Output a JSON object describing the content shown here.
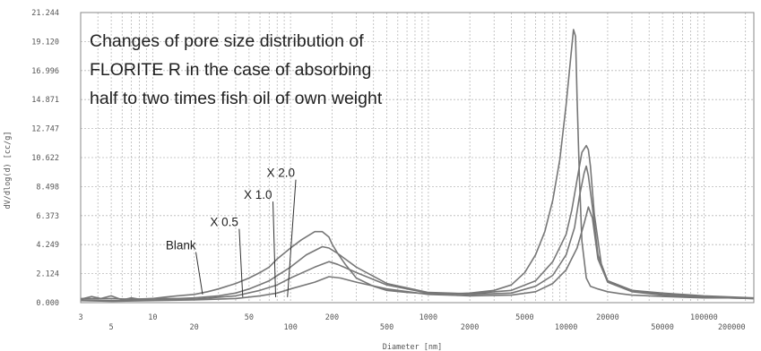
{
  "chart_data": {
    "type": "line",
    "title": "",
    "annotation_lines": [
      "Changes of pore size distribution of",
      "FLORITE R in the case of absorbing",
      "half to two times fish oil of own weight"
    ],
    "xlabel": "Diameter [nm]",
    "ylabel": "dV/dlog(d) [cc/g]",
    "x_scale": "log",
    "xlim": [
      3,
      230000
    ],
    "ylim": [
      0,
      21.244
    ],
    "y_ticks": [
      "0.000",
      "2.124",
      "4.249",
      "6.373",
      "8.498",
      "10.622",
      "12.747",
      "14.871",
      "16.996",
      "19.120",
      "21.244"
    ],
    "x_ticks": [
      {
        "value": 3,
        "label": "3"
      },
      {
        "value": 5,
        "label": "5"
      },
      {
        "value": 10,
        "label": "10"
      },
      {
        "value": 20,
        "label": "20"
      },
      {
        "value": 50,
        "label": "50"
      },
      {
        "value": 100,
        "label": "100"
      },
      {
        "value": 200,
        "label": "200"
      },
      {
        "value": 500,
        "label": "500"
      },
      {
        "value": 1000,
        "label": "1000"
      },
      {
        "value": 2000,
        "label": "2000"
      },
      {
        "value": 5000,
        "label": "5000"
      },
      {
        "value": 10000,
        "label": "10000"
      },
      {
        "value": 20000,
        "label": "20000"
      },
      {
        "value": 50000,
        "label": "50000"
      },
      {
        "value": 100000,
        "label": "100000"
      },
      {
        "value": 200000,
        "label": "200000"
      }
    ],
    "grid": true,
    "line_color": "#777777",
    "series": [
      {
        "name": "Blank",
        "label_at": [
          16,
          3.9
        ],
        "pointer_to": [
          23,
          0.6
        ],
        "x": [
          3,
          3.6,
          4.2,
          5,
          6,
          7,
          8,
          10,
          12,
          15,
          20,
          25,
          30,
          40,
          50,
          60,
          70,
          80,
          100,
          120,
          150,
          170,
          190,
          200,
          220,
          250,
          300,
          400,
          500,
          700,
          1000,
          1500,
          2000,
          3000,
          4000,
          5000,
          6000,
          7000,
          8000,
          9000,
          10000,
          10800,
          11300,
          11700,
          12000,
          12500,
          13000,
          14000,
          15000,
          17000,
          20000,
          25000,
          30000,
          50000,
          100000,
          150000,
          230000
        ],
        "y": [
          0.25,
          0.45,
          0.3,
          0.5,
          0.2,
          0.35,
          0.25,
          0.3,
          0.4,
          0.5,
          0.6,
          0.8,
          1.0,
          1.4,
          1.8,
          2.2,
          2.6,
          3.2,
          4.0,
          4.6,
          5.2,
          5.2,
          4.8,
          4.3,
          3.6,
          2.8,
          1.8,
          1.2,
          0.9,
          0.75,
          0.65,
          0.65,
          0.7,
          0.9,
          1.3,
          2.2,
          3.5,
          5.2,
          7.5,
          10.5,
          14.5,
          18.0,
          20.0,
          19.5,
          15.0,
          9.0,
          4.5,
          1.8,
          1.2,
          1.0,
          0.8,
          0.65,
          0.55,
          0.45,
          0.35,
          0.35,
          0.3
        ]
      },
      {
        "name": "X 0.5",
        "label_at": [
          33,
          5.6
        ],
        "pointer_to": [
          45,
          0.4
        ],
        "x": [
          3,
          4,
          5,
          7,
          10,
          15,
          20,
          30,
          40,
          50,
          70,
          100,
          130,
          170,
          190,
          220,
          300,
          500,
          1000,
          2000,
          4000,
          6000,
          8000,
          10000,
          11000,
          12000,
          13000,
          14000,
          14500,
          15000,
          16000,
          18000,
          20000,
          30000,
          50000,
          100000,
          230000
        ],
        "y": [
          0.3,
          0.3,
          0.3,
          0.25,
          0.3,
          0.3,
          0.35,
          0.5,
          0.7,
          1.0,
          1.6,
          2.6,
          3.5,
          4.1,
          4.0,
          3.6,
          2.6,
          1.4,
          0.75,
          0.65,
          0.9,
          1.6,
          3.0,
          5.0,
          6.8,
          9.0,
          11.0,
          11.5,
          11.2,
          10.0,
          6.5,
          2.8,
          1.6,
          0.9,
          0.7,
          0.5,
          0.35
        ]
      },
      {
        "name": "X 1.0",
        "label_at": [
          58,
          7.6
        ],
        "pointer_to": [
          78,
          0.4
        ],
        "x": [
          3,
          5,
          10,
          20,
          40,
          60,
          80,
          100,
          150,
          190,
          220,
          300,
          500,
          1000,
          2000,
          4000,
          6000,
          8000,
          10000,
          11500,
          12500,
          13500,
          14000,
          14500,
          15500,
          17000,
          20000,
          30000,
          50000,
          100000,
          230000
        ],
        "y": [
          0.2,
          0.15,
          0.2,
          0.25,
          0.5,
          0.9,
          1.3,
          1.8,
          2.6,
          3.0,
          2.8,
          2.2,
          1.3,
          0.7,
          0.6,
          0.7,
          1.2,
          2.0,
          3.5,
          5.5,
          7.8,
          9.5,
          10.0,
          9.3,
          7.0,
          3.5,
          1.6,
          0.9,
          0.6,
          0.45,
          0.3
        ]
      },
      {
        "name": "X 2.0",
        "label_at": [
          85,
          9.2
        ],
        "pointer_to": [
          95,
          0.4
        ],
        "x": [
          3,
          5,
          10,
          20,
          40,
          60,
          80,
          100,
          150,
          190,
          230,
          300,
          500,
          1000,
          2000,
          4000,
          6000,
          8000,
          10000,
          12000,
          13500,
          14500,
          15500,
          17000,
          20000,
          30000,
          50000,
          100000,
          230000
        ],
        "y": [
          0.15,
          0.1,
          0.15,
          0.2,
          0.3,
          0.5,
          0.7,
          1.0,
          1.5,
          1.9,
          1.8,
          1.5,
          1.0,
          0.6,
          0.5,
          0.55,
          0.8,
          1.4,
          2.4,
          4.0,
          5.8,
          7.0,
          6.2,
          3.2,
          1.5,
          0.8,
          0.55,
          0.4,
          0.3
        ]
      }
    ]
  }
}
